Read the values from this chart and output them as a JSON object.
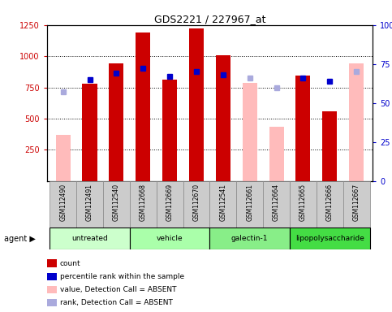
{
  "title": "GDS2221 / 227967_at",
  "samples": [
    "GSM112490",
    "GSM112491",
    "GSM112540",
    "GSM112668",
    "GSM112669",
    "GSM112670",
    "GSM112541",
    "GSM112661",
    "GSM112664",
    "GSM112665",
    "GSM112666",
    "GSM112667"
  ],
  "groups": [
    {
      "label": "untreated",
      "indices": [
        0,
        1,
        2
      ],
      "color": "#ccffcc"
    },
    {
      "label": "vehicle",
      "indices": [
        3,
        4,
        5
      ],
      "color": "#aaffaa"
    },
    {
      "label": "galectin-1",
      "indices": [
        6,
        7,
        8
      ],
      "color": "#88ee88"
    },
    {
      "label": "lipopolysaccharide",
      "indices": [
        9,
        10,
        11
      ],
      "color": "#44dd44"
    }
  ],
  "count_values": [
    null,
    780,
    940,
    1190,
    815,
    1220,
    1005,
    null,
    null,
    845,
    555,
    null
  ],
  "count_absent_values": [
    370,
    null,
    null,
    null,
    null,
    null,
    null,
    785,
    435,
    null,
    null,
    940
  ],
  "rank_values_pct": [
    null,
    65,
    69,
    72,
    67,
    70,
    68,
    null,
    null,
    66,
    64,
    null
  ],
  "rank_absent_values_pct": [
    57,
    null,
    null,
    null,
    null,
    null,
    null,
    66,
    60,
    null,
    null,
    70
  ],
  "bar_width": 0.55,
  "ylim_left": [
    0,
    1250
  ],
  "ylim_right": [
    0,
    100
  ],
  "yticks_left": [
    250,
    500,
    750,
    1000,
    1250
  ],
  "yticks_right": [
    0,
    25,
    50,
    75,
    100
  ],
  "count_color": "#cc0000",
  "count_absent_color": "#ffbbbb",
  "rank_color": "#0000cc",
  "rank_absent_color": "#aaaadd",
  "legend_items": [
    {
      "label": "count",
      "color": "#cc0000"
    },
    {
      "label": "percentile rank within the sample",
      "color": "#0000cc"
    },
    {
      "label": "value, Detection Call = ABSENT",
      "color": "#ffbbbb"
    },
    {
      "label": "rank, Detection Call = ABSENT",
      "color": "#aaaadd"
    }
  ],
  "left_tick_color": "#cc0000",
  "right_tick_color": "#0000cc"
}
